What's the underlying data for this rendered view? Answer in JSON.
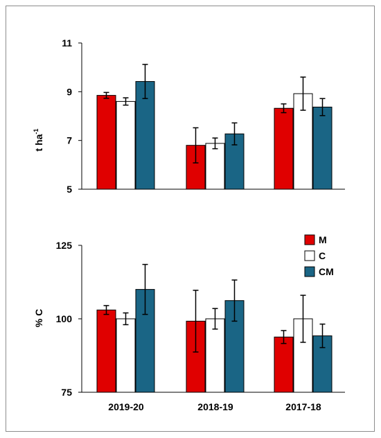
{
  "chart_data": [
    {
      "type": "bar",
      "ylabel_base": "t ha",
      "ylabel_sup": "-1",
      "ylim": [
        5,
        11
      ],
      "yticks": [
        "5",
        "7",
        "9",
        "11"
      ],
      "categories": [
        "2019-20",
        "2018-19",
        "2017-18"
      ],
      "show_xticks": false,
      "series": [
        {
          "name": "M",
          "color": "#e00000",
          "values": [
            8.85,
            6.8,
            8.32
          ],
          "errors": [
            0.12,
            0.72,
            0.18
          ]
        },
        {
          "name": "C",
          "color": "#ffffff",
          "values": [
            8.6,
            6.88,
            8.92
          ],
          "errors": [
            0.15,
            0.22,
            0.68
          ]
        },
        {
          "name": "CM",
          "color": "#1a6585",
          "values": [
            9.42,
            7.27,
            8.37
          ],
          "errors": [
            0.7,
            0.45,
            0.35
          ]
        }
      ]
    },
    {
      "type": "bar",
      "ylabel": "% C",
      "ylim": [
        75,
        125
      ],
      "yticks": [
        "75",
        "100",
        "125"
      ],
      "categories": [
        "2019-20",
        "2018-19",
        "2017-18"
      ],
      "show_xticks": true,
      "legend": {
        "placement": "top-right",
        "labels": [
          "M",
          "C",
          "CM"
        ]
      },
      "series": [
        {
          "name": "M",
          "color": "#e00000",
          "values": [
            103,
            99.2,
            93.8
          ],
          "errors": [
            1.5,
            10.5,
            2.2
          ]
        },
        {
          "name": "C",
          "color": "#ffffff",
          "values": [
            100,
            100,
            100
          ],
          "errors": [
            2.0,
            3.5,
            8.0
          ]
        },
        {
          "name": "CM",
          "color": "#1a6585",
          "values": [
            110,
            106.2,
            94.2
          ],
          "errors": [
            8.5,
            7.0,
            4.0
          ]
        }
      ]
    }
  ]
}
